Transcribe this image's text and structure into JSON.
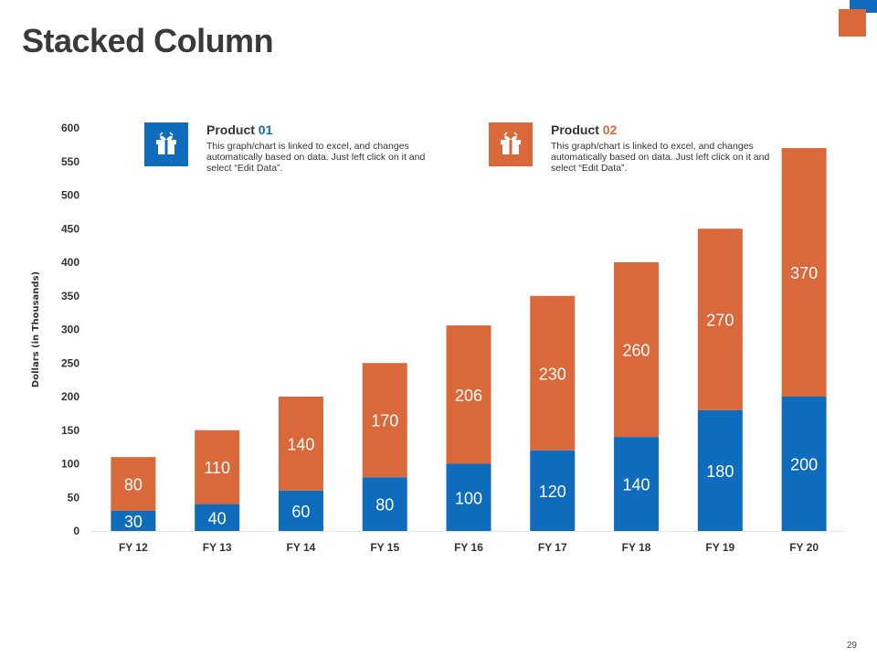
{
  "slide": {
    "title": "Stacked Column",
    "page_number": "29"
  },
  "colors": {
    "product01": "#0f6cbd",
    "product02": "#d9693a",
    "axis_text": "#333333",
    "gridline": "#e6e6e6"
  },
  "legend": [
    {
      "name_prefix": "Product ",
      "name_number": "01",
      "icon": "gift-box-icon",
      "color": "#0f6cbd",
      "description": "This graph/chart is linked to excel, and changes automatically based on data. Just left click on it and select “Edit Data”."
    },
    {
      "name_prefix": "Product ",
      "name_number": "02",
      "icon": "gift-box-icon",
      "color": "#d9693a",
      "description": "This graph/chart is linked to excel, and changes automatically based on data. Just left click on it and select “Edit Data”."
    }
  ],
  "chart_data": {
    "type": "bar",
    "stacked": true,
    "title": "",
    "xlabel": "",
    "ylabel": "Dollars (in Thousands)",
    "ylim": [
      0,
      600
    ],
    "yticks": [
      0,
      50,
      100,
      150,
      200,
      250,
      300,
      350,
      400,
      450,
      500,
      550,
      600
    ],
    "categories": [
      "FY 12",
      "FY 13",
      "FY 14",
      "FY 15",
      "FY 16",
      "FY 17",
      "FY 18",
      "FY 19",
      "FY 20"
    ],
    "series": [
      {
        "name": "Product 01",
        "values": [
          30,
          40,
          60,
          80,
          100,
          120,
          140,
          180,
          200
        ]
      },
      {
        "name": "Product 02",
        "values": [
          80,
          110,
          140,
          170,
          206,
          230,
          260,
          270,
          370
        ]
      }
    ],
    "data_labels": true,
    "grid": false
  }
}
